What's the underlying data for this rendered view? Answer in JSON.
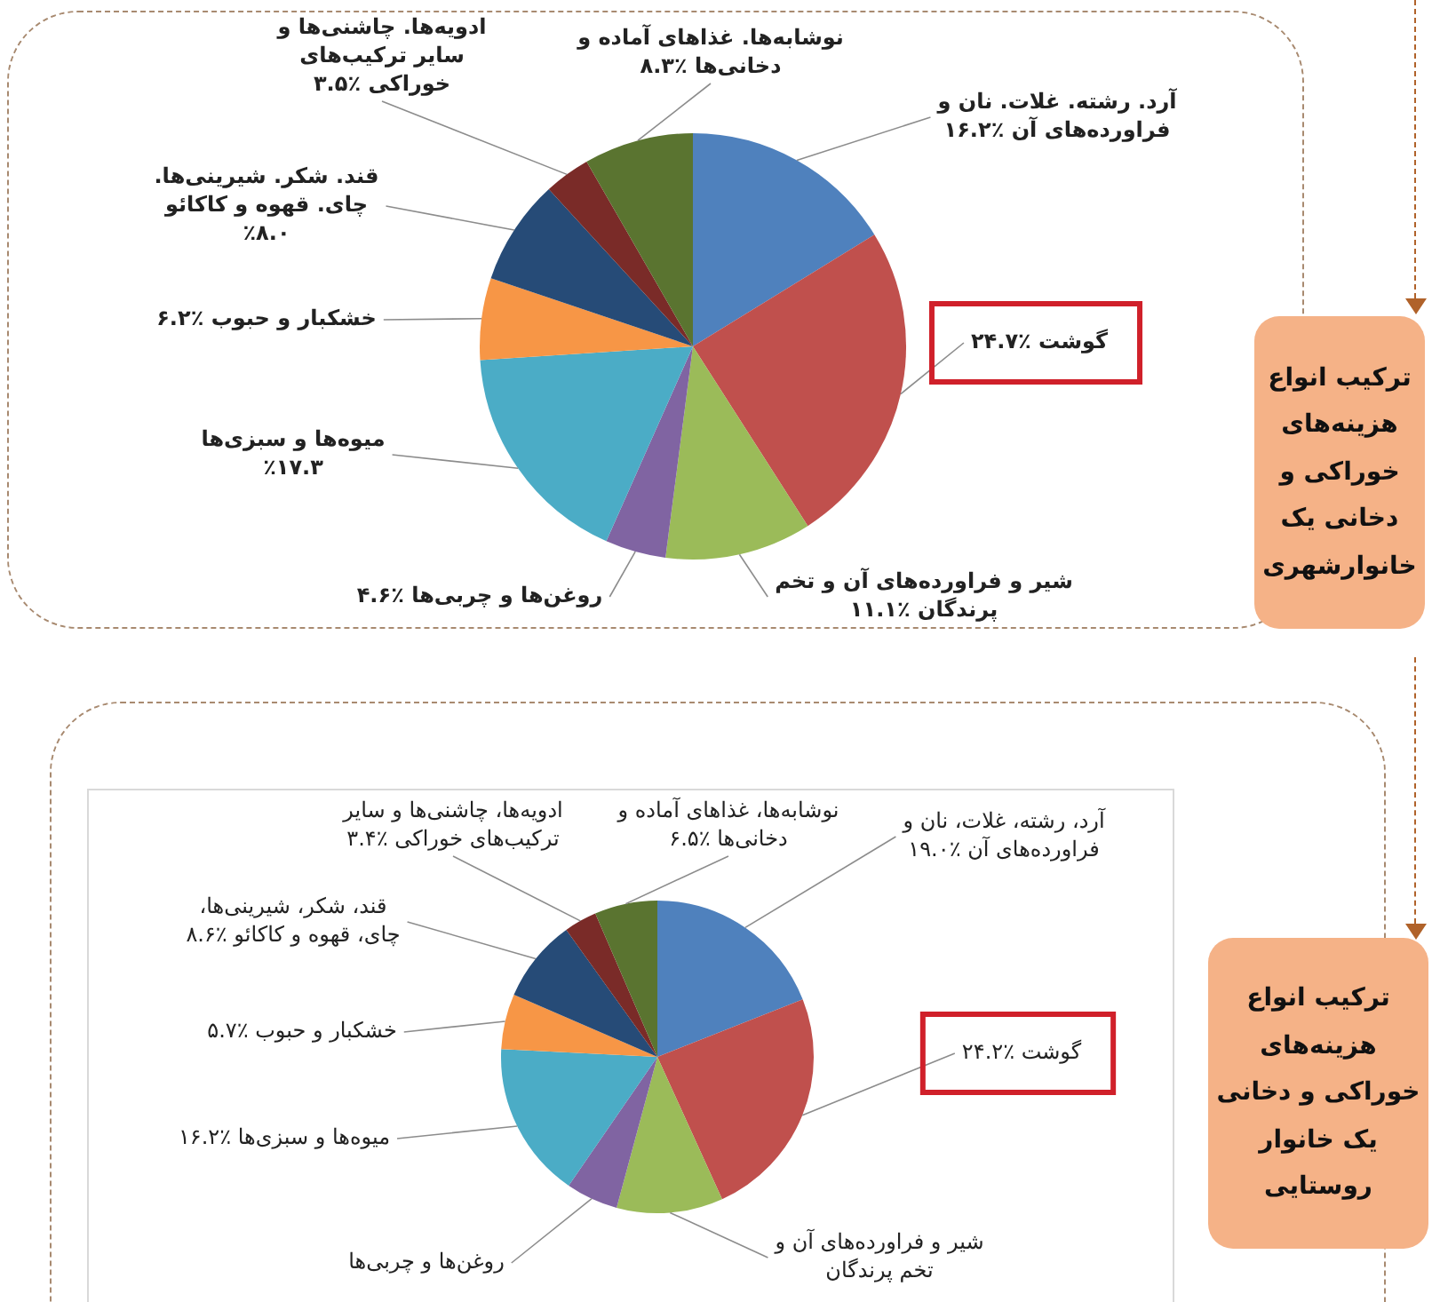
{
  "chart_data": [
    {
      "type": "pie",
      "title": "ترکیب انواع هزینه‌های خوراکی و دخانی یک خانوارشهری",
      "categories": [
        "آرد. رشته. غلات. نان و فراورده‌های آن",
        "گوشت",
        "شیر و فراورده‌های آن و تخم پرندگان",
        "روغن‌ها و چربی‌ها",
        "میوه‌ها و سبزی‌ها",
        "خشکبار و حبوب",
        "قند. شکر. شیرینی‌ها. چای. قهوه و کاکائو",
        "ادویه‌ها. چاشنی‌ها و سایر ترکیب‌های خوراکی",
        "نوشابه‌ها. غذاهای آماده و دخانی‌ها"
      ],
      "values": [
        16.2,
        24.7,
        11.1,
        4.6,
        17.3,
        6.2,
        8.0,
        3.5,
        8.3
      ],
      "value_labels": [
        "٪۱۶.۲",
        "٪۲۴.۷",
        "٪۱۱.۱",
        "٪۴.۶",
        "٪۱۷.۳",
        "٪۶.۲",
        "٪۸.۰",
        "٪۳.۵",
        "٪۸.۳"
      ],
      "colors": [
        "#4f81bd",
        "#c0504d",
        "#9bbb59",
        "#8064a2",
        "#4bacc6",
        "#f79646",
        "#264b77",
        "#7a2b28",
        "#5a7430"
      ]
    },
    {
      "type": "pie",
      "title": "ترکیب انواع هزینه‌های خوراکی و دخانی یک خانوار روستایی",
      "categories": [
        "آرد، رشته، غلات، نان و فراورده‌های آن",
        "گوشت",
        "شیر و فراورده‌های آن و تخم پرندگان",
        "روغن‌ها و چربی‌ها",
        "میوه‌ها و سبزی‌ها",
        "خشکبار و حبوب",
        "قند، شکر، شیرینی‌ها، چای، قهوه و کاکائو",
        "ادویه‌ها، چاشنی‌ها و سایر ترکیب‌های خوراکی",
        "نوشابه‌ها، غذاهای آماده و دخانی‌ها"
      ],
      "values": [
        19.0,
        24.2,
        11.0,
        5.4,
        16.2,
        5.7,
        8.6,
        3.4,
        6.5
      ],
      "value_labels": [
        "٪۱۹.۰",
        "٪۲۴.۲",
        null,
        null,
        "٪۱۶.۲",
        "٪۵.۷",
        "٪۸.۶",
        "٪۳.۴",
        "٪۶.۵"
      ],
      "colors": [
        "#4f81bd",
        "#c0504d",
        "#9bbb59",
        "#8064a2",
        "#4bacc6",
        "#f79646",
        "#264b77",
        "#7a2b28",
        "#5a7430"
      ]
    }
  ]
}
